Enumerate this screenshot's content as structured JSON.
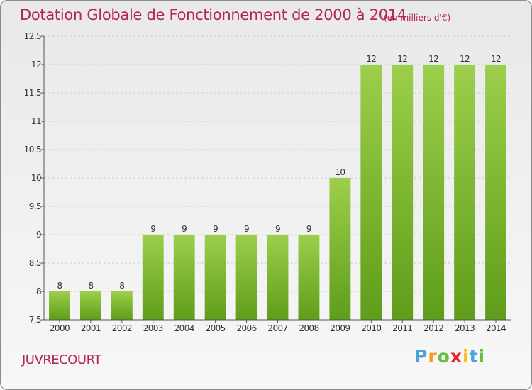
{
  "header": {
    "title": "Dotation Globale de Fonctionnement de 2000 à 2014",
    "unit": "(en milliers d'€)"
  },
  "commune": "JUVRECOURT",
  "logo": {
    "text": "Proxiti",
    "letters": [
      "P",
      "r",
      "o",
      "x",
      "i",
      "t",
      "i"
    ]
  },
  "colors": {
    "title": "#b4235a",
    "bar_top": "#9ccf4b",
    "bar_bottom": "#5f9d1a",
    "grid": "#cccccc",
    "axis": "#555555"
  },
  "chart_data": {
    "type": "bar",
    "title": "Dotation Globale de Fonctionnement de 2000 à 2014",
    "subtitle": "(en milliers d'€)",
    "xlabel": "",
    "ylabel": "",
    "categories": [
      "2000",
      "2001",
      "2002",
      "2003",
      "2004",
      "2005",
      "2006",
      "2007",
      "2008",
      "2009",
      "2010",
      "2011",
      "2012",
      "2013",
      "2014"
    ],
    "values": [
      8,
      8,
      8,
      9,
      9,
      9,
      9,
      9,
      9,
      10,
      12,
      12,
      12,
      12,
      12
    ],
    "ylim": [
      7.5,
      12.5
    ],
    "yticks": [
      7.5,
      8,
      8.5,
      9,
      9.5,
      10,
      10.5,
      11,
      11.5,
      12,
      12.5
    ],
    "ytick_labels": [
      "7.5",
      "8",
      "8.5",
      "9",
      "9.5",
      "10",
      "10.5",
      "11",
      "11.5",
      "12",
      "12.5"
    ],
    "grid": true,
    "legend": "none"
  }
}
